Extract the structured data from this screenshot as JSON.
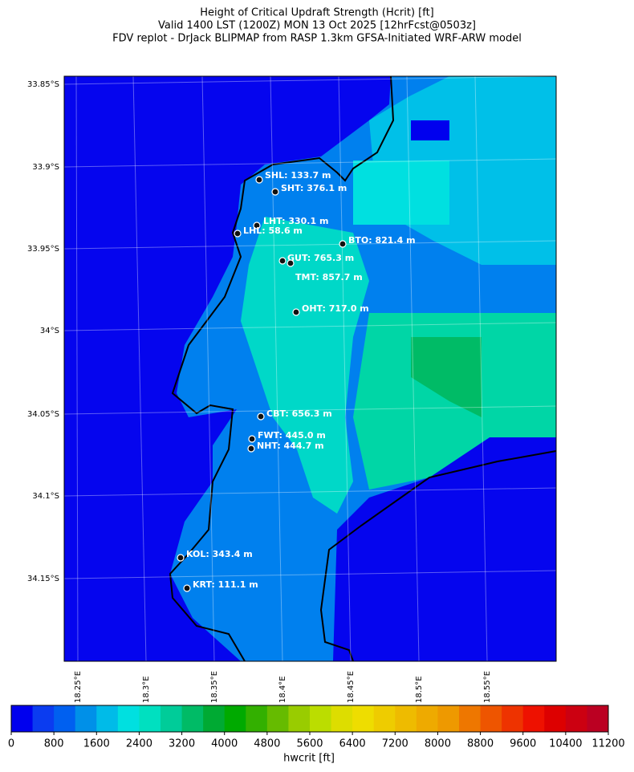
{
  "header": {
    "title": [
      "Height of Critical Updraft Strength (Hcrit) [ft]",
      "Valid 1400 LST (1200Z) MON 13 Oct 2025 [12hrFcst@0503z]",
      "FDV replot - DrJack BLIPMAP from RASP 1.3km GFSA-Initiated WRF-ARW model"
    ]
  },
  "map": {
    "lat_labels": [
      "33.85°S",
      "33.9°S",
      "33.95°S",
      "34°S",
      "34.05°S",
      "34.1°S",
      "34.15°S"
    ],
    "lon_labels": [
      "18.25°E",
      "18.3°E",
      "18.35°E",
      "18.4°E",
      "18.45°E",
      "18.5°E",
      "18.55°E"
    ],
    "stations": [
      {
        "label": "SHL: 133.7 m"
      },
      {
        "label": "SHT: 376.1 m"
      },
      {
        "label": "LHT: 330.1 m"
      },
      {
        "label": "LHL: 58.6 m"
      },
      {
        "label": "BTO: 821.4 m"
      },
      {
        "label": "GUT: 765.3 m"
      },
      {
        "label": "TMT: 857.7 m"
      },
      {
        "label": "OHT: 717.0 m"
      },
      {
        "label": "CBT: 656.3 m"
      },
      {
        "label": "FWT: 445.0 m"
      },
      {
        "label": "NHT: 444.7 m"
      },
      {
        "label": "KOL: 343.4 m"
      },
      {
        "label": "KRT: 111.1 m"
      }
    ]
  },
  "colorbar": {
    "ticks": [
      0,
      800,
      1600,
      2400,
      3200,
      4000,
      4800,
      5600,
      6400,
      7200,
      8000,
      8800,
      9600,
      10400,
      11200
    ],
    "label": "hwcrit [ft]",
    "colors": [
      "#0000ee",
      "#0b3cf0",
      "#0060f0",
      "#0090e8",
      "#00bbe8",
      "#00e0e0",
      "#00e0c0",
      "#00cc99",
      "#00bb66",
      "#00aa33",
      "#00aa00",
      "#33b000",
      "#66bb00",
      "#99cc00",
      "#bbdd00",
      "#dddd00",
      "#eedd00",
      "#eecc00",
      "#eebb00",
      "#eeaa00",
      "#ee9900",
      "#ee7700",
      "#ee5500",
      "#ee3300",
      "#ee1100",
      "#dd0000",
      "#cc0011",
      "#bb0022"
    ]
  }
}
